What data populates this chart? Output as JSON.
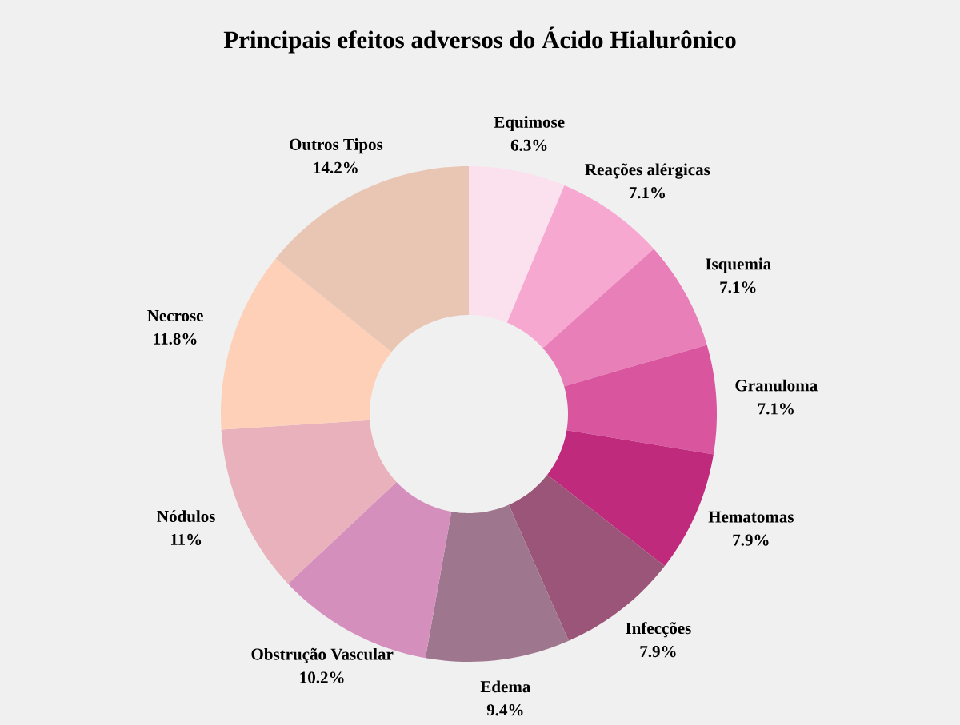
{
  "chart_data": {
    "type": "donut",
    "title": "Principais efeitos adversos do Ácido Hialurônico",
    "categories": [
      "Equimose",
      "Reações alérgicas",
      "Isquemia",
      "Granuloma",
      "Hematomas",
      "Infecções",
      "Edema",
      "Obstrução Vascular",
      "Nódulos",
      "Necrose",
      "Outros Tipos"
    ],
    "values": [
      6.3,
      7.1,
      7.1,
      7.1,
      7.9,
      7.9,
      9.4,
      10.2,
      11,
      11.8,
      14.2
    ],
    "value_labels": [
      "6.3%",
      "7.1%",
      "7.1%",
      "7.1%",
      "7.9%",
      "7.9%",
      "9.4%",
      "10.2%",
      "11%",
      "11.8%",
      "14.2%"
    ],
    "colors": [
      "#fbe0ee",
      "#f7a8d0",
      "#e87fb8",
      "#d9559e",
      "#bf2a7c",
      "#9a5578",
      "#9e778e",
      "#d48fbd",
      "#e8b1bb",
      "#fdd0b7",
      "#e9c6b4"
    ]
  }
}
